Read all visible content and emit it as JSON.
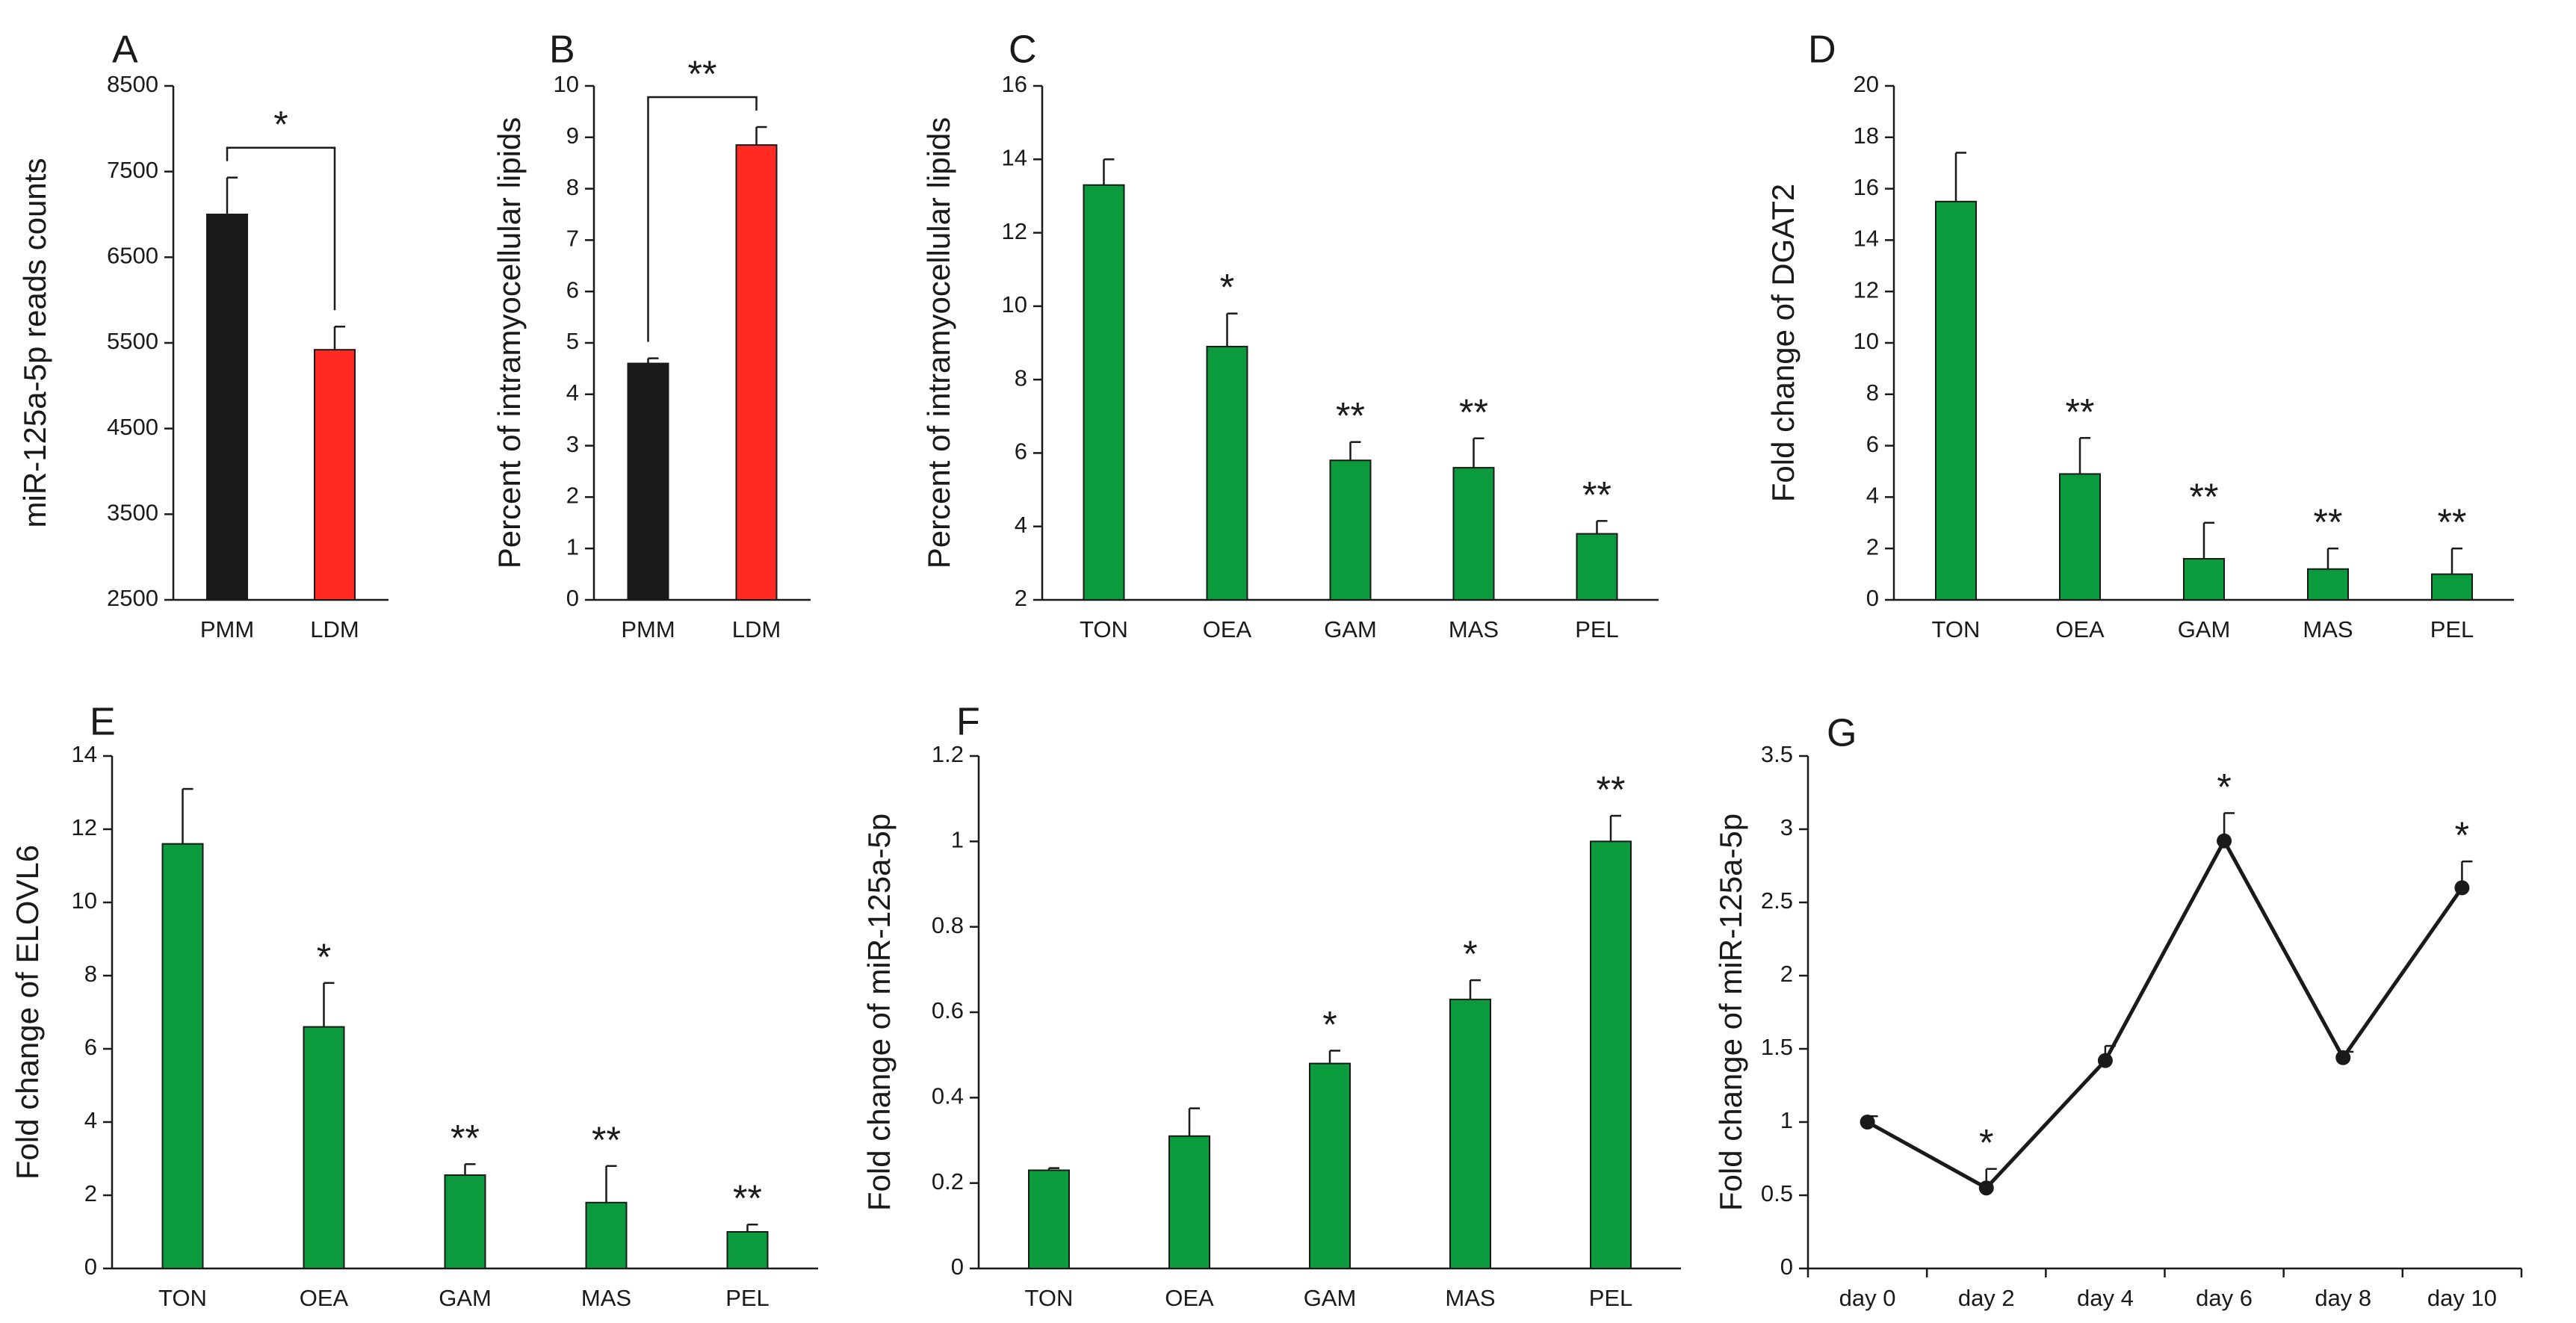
{
  "figure": {
    "description_id": "miR-125a-5p multi-panel figure"
  },
  "style": {
    "black": "#1a1a1a",
    "red": "#ff2a24",
    "green": "#0b9a3c",
    "axis": "#1a1a1a"
  },
  "chart_data": [
    {
      "id": "A",
      "label": "A",
      "type": "bar",
      "title": "",
      "xlabel": "",
      "ylabel": "miR-125a-5p reads counts",
      "ylim": [
        2500,
        8500
      ],
      "yticks": [
        2500,
        3500,
        4500,
        5500,
        6500,
        7500,
        8500
      ],
      "categories": [
        "PMM",
        "LDM"
      ],
      "values": [
        7000,
        5420
      ],
      "errors": [
        430,
        270
      ],
      "colors": [
        "#1a1a1a",
        "#ff2a24"
      ],
      "stars": [
        "",
        ""
      ],
      "bracket": {
        "from": 0,
        "to": 1,
        "label": "*"
      }
    },
    {
      "id": "B",
      "label": "B",
      "type": "bar",
      "title": "",
      "xlabel": "",
      "ylabel": "Percent of intramyocellular lipids",
      "ylim": [
        0,
        10
      ],
      "yticks": [
        0,
        1,
        2,
        3,
        4,
        5,
        6,
        7,
        8,
        9,
        10
      ],
      "categories": [
        "PMM",
        "LDM"
      ],
      "values": [
        4.6,
        8.85
      ],
      "errors": [
        0.1,
        0.35
      ],
      "colors": [
        "#1a1a1a",
        "#ff2a24"
      ],
      "stars": [
        "",
        ""
      ],
      "bracket": {
        "from": 0,
        "to": 1,
        "label": "**"
      }
    },
    {
      "id": "C",
      "label": "C",
      "type": "bar",
      "title": "",
      "xlabel": "",
      "ylabel": "Percent of intramyocellular lipids",
      "ylim": [
        2,
        16
      ],
      "yticks": [
        2,
        4,
        6,
        8,
        10,
        12,
        14,
        16
      ],
      "categories": [
        "TON",
        "OEA",
        "GAM",
        "MAS",
        "PEL"
      ],
      "values": [
        13.3,
        8.9,
        5.8,
        5.6,
        3.8
      ],
      "errors": [
        0.7,
        0.9,
        0.5,
        0.8,
        0.35
      ],
      "colors": [
        "#0b9a3c",
        "#0b9a3c",
        "#0b9a3c",
        "#0b9a3c",
        "#0b9a3c"
      ],
      "stars": [
        "",
        "*",
        "**",
        "**",
        "**"
      ]
    },
    {
      "id": "D",
      "label": "D",
      "type": "bar",
      "title": "",
      "xlabel": "",
      "ylabel": "Fold change of DGAT2",
      "ylim": [
        0,
        20
      ],
      "yticks": [
        0,
        2,
        4,
        6,
        8,
        10,
        12,
        14,
        16,
        18,
        20
      ],
      "categories": [
        "TON",
        "OEA",
        "GAM",
        "MAS",
        "PEL"
      ],
      "values": [
        15.5,
        4.9,
        1.6,
        1.2,
        1.0
      ],
      "errors": [
        1.9,
        1.4,
        1.4,
        0.8,
        1.0
      ],
      "colors": [
        "#0b9a3c",
        "#0b9a3c",
        "#0b9a3c",
        "#0b9a3c",
        "#0b9a3c"
      ],
      "stars": [
        "",
        "**",
        "**",
        "**",
        "**"
      ]
    },
    {
      "id": "E",
      "label": "E",
      "type": "bar",
      "title": "",
      "xlabel": "",
      "ylabel": "Fold change of ELOVL6",
      "ylim": [
        0,
        14
      ],
      "yticks": [
        0,
        2,
        4,
        6,
        8,
        10,
        12,
        14
      ],
      "categories": [
        "TON",
        "OEA",
        "GAM",
        "MAS",
        "PEL"
      ],
      "values": [
        11.6,
        6.6,
        2.55,
        1.8,
        1.0
      ],
      "errors": [
        1.5,
        1.2,
        0.3,
        1.0,
        0.2
      ],
      "colors": [
        "#0b9a3c",
        "#0b9a3c",
        "#0b9a3c",
        "#0b9a3c",
        "#0b9a3c"
      ],
      "stars": [
        "",
        "*",
        "**",
        "**",
        "**"
      ]
    },
    {
      "id": "F",
      "label": "F",
      "type": "bar",
      "title": "",
      "xlabel": "",
      "ylabel": "Fold change of miR-125a-5p",
      "ylim": [
        0,
        1.2
      ],
      "yticks": [
        0,
        0.2,
        0.4,
        0.6,
        0.8,
        1,
        1.2
      ],
      "categories": [
        "TON",
        "OEA",
        "GAM",
        "MAS",
        "PEL"
      ],
      "values": [
        0.23,
        0.31,
        0.48,
        0.63,
        1.0
      ],
      "errors": [
        0.005,
        0.065,
        0.03,
        0.045,
        0.06
      ],
      "colors": [
        "#0b9a3c",
        "#0b9a3c",
        "#0b9a3c",
        "#0b9a3c",
        "#0b9a3c"
      ],
      "stars": [
        "",
        "",
        "*",
        "*",
        "**"
      ]
    },
    {
      "id": "G",
      "label": "G",
      "type": "line",
      "title": "",
      "xlabel": "",
      "ylabel": "Fold change of miR-125a-5p",
      "ylim": [
        0,
        3.5
      ],
      "yticks": [
        0,
        0.5,
        1,
        1.5,
        2,
        2.5,
        3,
        3.5
      ],
      "categories": [
        "day 0",
        "day 2",
        "day 4",
        "day 6",
        "day 8",
        "day 10"
      ],
      "values": [
        1.0,
        0.55,
        1.42,
        2.92,
        1.44,
        2.6
      ],
      "errors": [
        0.04,
        0.13,
        0.1,
        0.19,
        0.04,
        0.18
      ],
      "colors": [
        "#1a1a1a"
      ],
      "stars": [
        "",
        "*",
        "",
        "*",
        "",
        "*"
      ]
    }
  ]
}
